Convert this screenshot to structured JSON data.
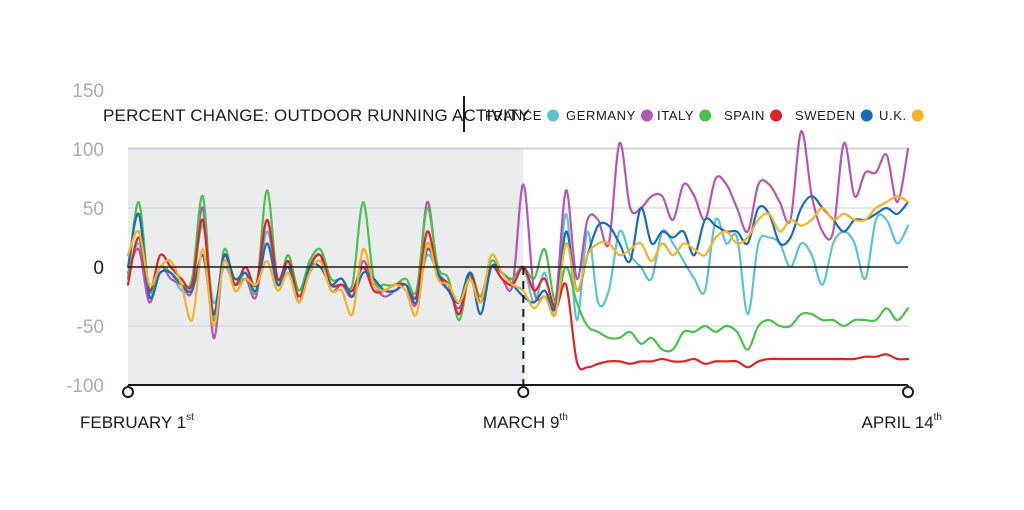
{
  "chart_data": {
    "type": "line",
    "title": "PERCENT CHANGE: OUTDOOR RUNNING ACTIVITY",
    "xlabel": "",
    "ylabel": "",
    "ylim": [
      -100,
      150
    ],
    "yticks": [
      "150",
      "100",
      "50",
      "0",
      "-50",
      "-100"
    ],
    "grid": true,
    "legend_position": "top-right",
    "shaded_region": {
      "from_day": 0,
      "to_day": 37,
      "color": "#ebeced"
    },
    "date_markers": [
      {
        "day": 0,
        "label": "FEBRUARY 1",
        "sup": "st"
      },
      {
        "day": 37,
        "label": "MARCH 9",
        "sup": "th"
      },
      {
        "day": 73,
        "label": "APRIL 14",
        "sup": "th"
      }
    ],
    "x_days": [
      0,
      1,
      2,
      3,
      4,
      5,
      6,
      7,
      8,
      9,
      10,
      11,
      12,
      13,
      14,
      15,
      16,
      17,
      18,
      19,
      20,
      21,
      22,
      23,
      24,
      25,
      26,
      27,
      28,
      29,
      30,
      31,
      32,
      33,
      34,
      35,
      36,
      37,
      38,
      39,
      40,
      41,
      42,
      43,
      44,
      45,
      46,
      47,
      48,
      49,
      50,
      51,
      52,
      53,
      54,
      55,
      56,
      57,
      58,
      59,
      60,
      61,
      62,
      63,
      64,
      65,
      66,
      67,
      68,
      69,
      70,
      71,
      72,
      73
    ],
    "series": [
      {
        "name": "FRANCE",
        "color": "#5bc4d3",
        "values": [
          -10,
          20,
          -25,
          -5,
          -5,
          -20,
          -15,
          35,
          -30,
          0,
          -15,
          -10,
          -20,
          30,
          -10,
          0,
          -25,
          -5,
          5,
          -15,
          -15,
          -20,
          0,
          -15,
          -20,
          -20,
          -15,
          -25,
          10,
          -5,
          -15,
          -30,
          -10,
          -30,
          0,
          -5,
          -10,
          0,
          -30,
          -5,
          -40,
          45,
          -45,
          30,
          -30,
          -20,
          30,
          10,
          0,
          -10,
          30,
          20,
          5,
          -10,
          -20,
          40,
          20,
          25,
          -40,
          20,
          25,
          20,
          0,
          20,
          10,
          -15,
          20,
          30,
          20,
          -10,
          40,
          40,
          20,
          35
        ]
      },
      {
        "name": "GERMANY",
        "color": "#b556b7",
        "values": [
          -5,
          15,
          -30,
          0,
          -10,
          -15,
          -20,
          50,
          -60,
          10,
          -20,
          -10,
          -25,
          40,
          -15,
          5,
          -30,
          0,
          10,
          -20,
          -15,
          -25,
          5,
          -15,
          -25,
          -20,
          -15,
          -30,
          55,
          -5,
          -20,
          -35,
          -10,
          -30,
          0,
          -10,
          -15,
          70,
          -20,
          -25,
          -30,
          65,
          -10,
          40,
          40,
          20,
          105,
          50,
          50,
          60,
          60,
          40,
          70,
          60,
          40,
          75,
          70,
          50,
          30,
          70,
          70,
          55,
          40,
          115,
          60,
          30,
          30,
          105,
          60,
          80,
          80,
          95,
          55,
          100
        ]
      },
      {
        "name": "ITALY",
        "color": "#4bc04b",
        "values": [
          -10,
          55,
          -20,
          0,
          -5,
          -15,
          -10,
          60,
          -45,
          15,
          -15,
          -5,
          -20,
          65,
          -10,
          10,
          -20,
          5,
          15,
          -10,
          -10,
          -15,
          55,
          -10,
          -15,
          -15,
          -10,
          -20,
          50,
          0,
          -10,
          -45,
          -5,
          -25,
          5,
          -5,
          -10,
          0,
          -10,
          15,
          -30,
          0,
          -30,
          -50,
          -55,
          -60,
          -60,
          -55,
          -65,
          -60,
          -70,
          -70,
          -55,
          -55,
          -50,
          -55,
          -50,
          -55,
          -70,
          -50,
          -45,
          -50,
          -50,
          -40,
          -40,
          -45,
          -45,
          -50,
          -45,
          -45,
          -45,
          -35,
          -45,
          -35
        ]
      },
      {
        "name": "SPAIN",
        "color": "#e0232a",
        "values": [
          -15,
          25,
          -20,
          10,
          0,
          -10,
          -15,
          40,
          -40,
          10,
          -15,
          0,
          -15,
          40,
          -10,
          5,
          -25,
          0,
          10,
          -15,
          -15,
          -20,
          0,
          -20,
          -20,
          -15,
          -15,
          -25,
          30,
          -5,
          -15,
          -40,
          -5,
          -30,
          0,
          -10,
          -15,
          0,
          -20,
          -10,
          -35,
          -15,
          -80,
          -85,
          -82,
          -80,
          -80,
          -82,
          -80,
          -80,
          -78,
          -80,
          -80,
          -78,
          -82,
          -80,
          -80,
          -80,
          -85,
          -80,
          -78,
          -78,
          -78,
          -78,
          -78,
          -78,
          -78,
          -78,
          -78,
          -76,
          -76,
          -74,
          -78,
          -78
        ]
      },
      {
        "name": "SWEDEN",
        "color": "#1c6bb5",
        "values": [
          0,
          45,
          -25,
          -5,
          -5,
          -15,
          -20,
          10,
          -40,
          10,
          -10,
          -5,
          -20,
          20,
          -15,
          0,
          -30,
          0,
          0,
          -15,
          -10,
          -25,
          -5,
          -10,
          -20,
          -20,
          -15,
          -30,
          15,
          -5,
          -20,
          -30,
          -5,
          -40,
          0,
          -5,
          -15,
          -25,
          -30,
          -20,
          -35,
          30,
          -20,
          10,
          35,
          35,
          20,
          5,
          50,
          20,
          30,
          25,
          30,
          10,
          40,
          35,
          30,
          30,
          20,
          50,
          45,
          20,
          25,
          50,
          60,
          50,
          40,
          30,
          40,
          40,
          45,
          50,
          45,
          55
        ]
      },
      {
        "name": "U.K.",
        "color": "#f9b124",
        "values": [
          10,
          30,
          -15,
          0,
          5,
          -15,
          -45,
          15,
          -50,
          5,
          -20,
          -10,
          -15,
          5,
          -20,
          -5,
          -30,
          -5,
          5,
          -20,
          -20,
          -40,
          15,
          -15,
          -20,
          -15,
          -20,
          -40,
          20,
          -10,
          -15,
          -30,
          -10,
          -30,
          10,
          -5,
          -15,
          -20,
          -35,
          -25,
          -40,
          20,
          -20,
          10,
          20,
          20,
          10,
          15,
          20,
          5,
          20,
          10,
          20,
          15,
          10,
          25,
          30,
          20,
          25,
          40,
          45,
          30,
          40,
          35,
          40,
          50,
          40,
          45,
          40,
          40,
          50,
          55,
          60,
          55
        ]
      }
    ]
  }
}
